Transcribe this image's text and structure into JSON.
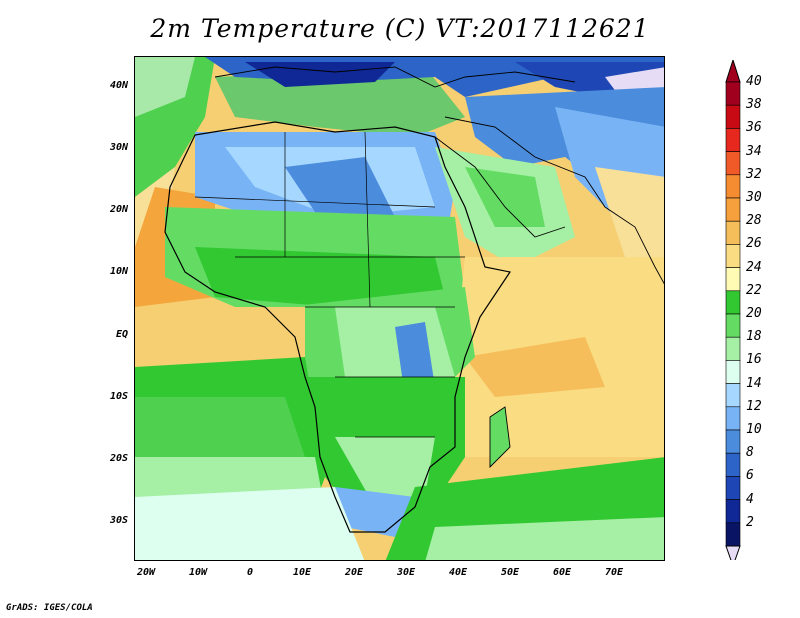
{
  "map": {
    "title": "2m Temperature (C) VT:2017112621",
    "lat_labels": [
      "40N",
      "30N",
      "20N",
      "10N",
      "EQ",
      "10S",
      "20S",
      "30S"
    ],
    "lon_labels": [
      "20W",
      "10W",
      "0",
      "10E",
      "20E",
      "30E",
      "40E",
      "50E",
      "60E",
      "70E"
    ],
    "footer": "GrADS: IGES/COLA"
  },
  "colorbar": {
    "labels": [
      "40",
      "38",
      "36",
      "34",
      "32",
      "30",
      "28",
      "26",
      "24",
      "22",
      "20",
      "18",
      "16",
      "14",
      "12",
      "10",
      "8",
      "6",
      "4",
      "2"
    ],
    "colors": [
      "#a0001e",
      "#c80a14",
      "#e6281e",
      "#f05a28",
      "#f58c32",
      "#f5a03c",
      "#f5be5a",
      "#fadc82",
      "#fffab4",
      "#32c832",
      "#64dc64",
      "#a5f0a5",
      "#dcfff0",
      "#a5d7ff",
      "#78b4f5",
      "#4b8cdc",
      "#2d64c8",
      "#1e46b4",
      "#0f2896",
      "#0a1464"
    ],
    "under_color": "#e6dcf5"
  }
}
